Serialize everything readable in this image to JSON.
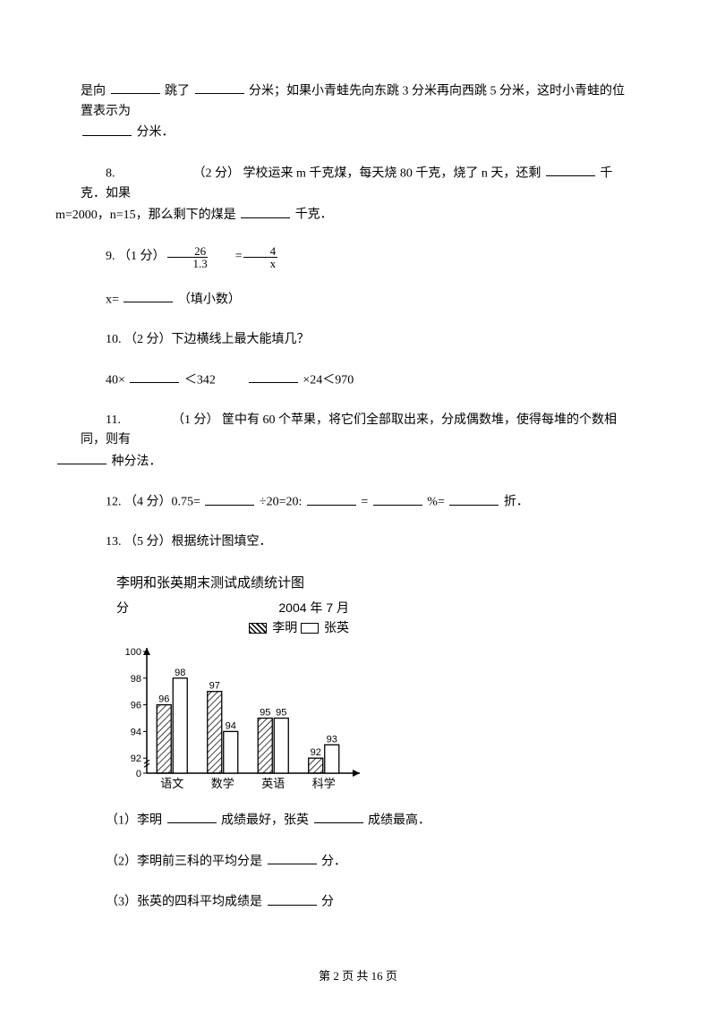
{
  "q7_continued": {
    "l1a": "是向",
    "l1b": "跳了",
    "l1c": "分米；如果小青蛙先向东跳 3 分米再向西跳 5 分米，这时小青蛙的位置表示为",
    "l2": "分米．"
  },
  "q8": {
    "prefix": "8.",
    "points": "（2 分）",
    "t1": "学校运来 m 千克煤，每天烧 80 千克，烧了 n 天，还剩",
    "t2": "千克．如果",
    "line2a": "m=2000，n=15，那么剩下的煤是",
    "line2b": "千克．"
  },
  "q9": {
    "prefix": "9.  （1 分）",
    "frac1_num": "26",
    "frac1_den": "1.3",
    "eq": " = ",
    "frac2_num": "4",
    "frac2_den": "x",
    "x_line_a": "x=",
    "x_line_b": "（填小数）"
  },
  "q10": {
    "line1": "10.  （2 分）下边横线上最大能填几？",
    "l2a": "40×",
    "l2b": "＜342",
    "gap": "        ",
    "l2c": "×24＜970"
  },
  "q11": {
    "prefix": "11.",
    "points": "（1 分）",
    "t1": "筐中有 60 个苹果，将它们全部取出来，分成偶数堆，使得每堆的个数相同，则有",
    "line2": " 种分法．"
  },
  "q12": {
    "a": "12.  （4 分）0.75=",
    "b": "÷20=20:",
    "c": "=",
    "d": "%=",
    "e": "折．"
  },
  "q13": {
    "line1": "13.  （5 分）根据统计图填空．",
    "chart": {
      "type": "bar",
      "title": "李明和张英期末测试成绩统计图",
      "date": "2004 年 7 月",
      "y_label": "分",
      "legend": {
        "s1": "李明",
        "s2": "张英"
      },
      "categories": [
        "语文",
        "数学",
        "英语",
        "科学"
      ],
      "liming": [
        96,
        97,
        95,
        92
      ],
      "zhangying": [
        98,
        94,
        95,
        93
      ],
      "y_ticks": [
        0,
        92,
        94,
        96,
        98,
        100
      ],
      "bar_border": "#000000",
      "hatch_angle": 45,
      "axis_color": "#000000",
      "bg": "#ffffff",
      "label_fontsize": 13,
      "value_fontsize": 11
    },
    "sub1a": "（1）李明",
    "sub1b": "成绩最好，张英",
    "sub1c": "成绩最高．",
    "sub2a": "（2）李明前三科的平均分是",
    "sub2b": "分．",
    "sub3a": "（3）张英的四科平均成绩是",
    "sub3b": "分"
  },
  "footer": "第 2 页 共 16 页"
}
